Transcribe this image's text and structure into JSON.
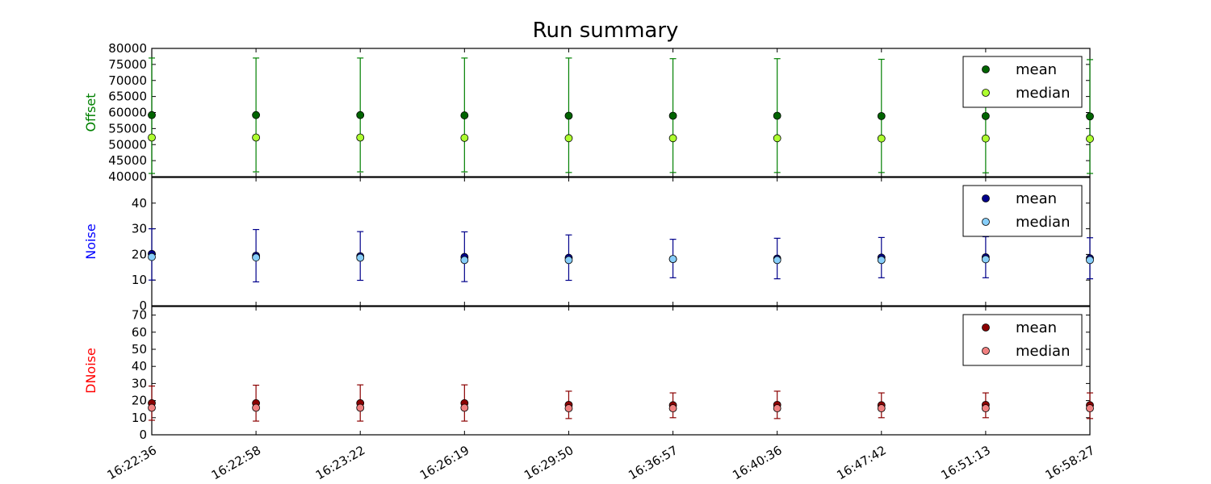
{
  "title": "Run summary",
  "x_ticks": [
    "16:22:36",
    "16:22:58",
    "16:23:22",
    "16:26:19",
    "16:29:50",
    "16:36:57",
    "16:40:36",
    "16:47:42",
    "16:51:13",
    "16:58:27"
  ],
  "chart_data": [
    {
      "type": "scatter",
      "panel": "offset",
      "ylabel": "Offset",
      "ylabel_color": "#008000",
      "ylim": [
        40000,
        80000
      ],
      "yticks": [
        "40000",
        "45000",
        "50000",
        "55000",
        "60000",
        "65000",
        "70000",
        "75000",
        "80000"
      ],
      "x": [
        "16:22:36",
        "16:22:58",
        "16:23:22",
        "16:26:19",
        "16:29:50",
        "16:36:57",
        "16:40:36",
        "16:47:42",
        "16:51:13",
        "16:58:27"
      ],
      "errorbar_color": "#008000",
      "legend_position": "top-right",
      "series": [
        {
          "name": "mean",
          "color": "#006400",
          "values": [
            59200,
            59200,
            59200,
            59100,
            59000,
            59000,
            59000,
            58900,
            58900,
            58800
          ],
          "err_low": [
            41000,
            41500,
            41500,
            41500,
            41300,
            41300,
            41300,
            41300,
            41200,
            41000
          ],
          "err_high": [
            77000,
            77000,
            77000,
            77000,
            77000,
            76800,
            76800,
            76600,
            76600,
            76500
          ]
        },
        {
          "name": "median",
          "color": "#adff2f",
          "values": [
            52200,
            52200,
            52200,
            52100,
            52000,
            52000,
            52000,
            51900,
            51900,
            51800
          ]
        }
      ]
    },
    {
      "type": "scatter",
      "panel": "noise",
      "ylabel": "Noise",
      "ylabel_color": "#0000ff",
      "ylim": [
        0,
        50
      ],
      "yticks": [
        "0",
        "10",
        "20",
        "30",
        "40"
      ],
      "x": [
        "16:22:36",
        "16:22:58",
        "16:23:22",
        "16:26:19",
        "16:29:50",
        "16:36:57",
        "16:40:36",
        "16:47:42",
        "16:51:13",
        "16:58:27"
      ],
      "errorbar_color": "#00008b",
      "legend_position": "top-right",
      "series": [
        {
          "name": "mean",
          "color": "#00008b",
          "values": [
            20.2,
            19.5,
            19.3,
            19.0,
            18.7,
            18.2,
            18.4,
            18.8,
            18.9,
            18.5
          ],
          "err_low": [
            10.0,
            9.3,
            9.9,
            9.4,
            9.9,
            10.9,
            10.5,
            10.9,
            10.9,
            10.5
          ],
          "err_high": [
            30.0,
            29.7,
            28.9,
            28.8,
            27.6,
            25.9,
            26.3,
            26.6,
            26.9,
            26.5
          ]
        },
        {
          "name": "median",
          "color": "#87cefa",
          "values": [
            19.0,
            18.8,
            18.7,
            17.8,
            17.8,
            18.2,
            17.8,
            17.8,
            18.1,
            17.8
          ]
        }
      ]
    },
    {
      "type": "scatter",
      "panel": "dnoise",
      "ylabel": "DNoise",
      "ylabel_color": "#ff0000",
      "ylim": [
        0,
        75
      ],
      "yticks": [
        "0",
        "10",
        "20",
        "30",
        "40",
        "50",
        "60",
        "70"
      ],
      "x": [
        "16:22:36",
        "16:22:58",
        "16:23:22",
        "16:26:19",
        "16:29:50",
        "16:36:57",
        "16:40:36",
        "16:47:42",
        "16:51:13",
        "16:58:27"
      ],
      "errorbar_color": "#8b0000",
      "legend_position": "top-right",
      "series": [
        {
          "name": "mean",
          "color": "#8b0000",
          "values": [
            18.5,
            18.5,
            18.5,
            18.5,
            17.5,
            17.3,
            17.5,
            17.3,
            17.5,
            17.3
          ],
          "err_low": [
            8.5,
            8.0,
            8.0,
            8.0,
            9.5,
            10.0,
            9.5,
            10.0,
            10.0,
            9.5
          ],
          "err_high": [
            28.5,
            29.0,
            29.2,
            29.2,
            25.5,
            24.5,
            25.5,
            24.5,
            24.5,
            24.5
          ]
        },
        {
          "name": "median",
          "color": "#f08080",
          "values": [
            15.8,
            15.8,
            15.8,
            15.8,
            15.5,
            15.5,
            15.5,
            15.5,
            15.5,
            15.5
          ]
        }
      ]
    }
  ]
}
